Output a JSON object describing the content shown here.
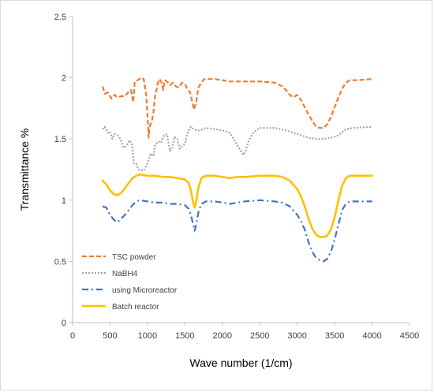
{
  "chart_data": {
    "type": "line",
    "title": "",
    "xlabel": "Wave number (1/cm)",
    "ylabel": "Transmittance %",
    "xlim": [
      0,
      4500
    ],
    "ylim": [
      0,
      2.5
    ],
    "xticks": [
      0,
      500,
      1000,
      1500,
      2000,
      2500,
      3000,
      3500,
      4000,
      4500
    ],
    "yticks": [
      0,
      0.5,
      1,
      1.5,
      2,
      2.5
    ],
    "xtick_labels": [
      "0",
      "500",
      "1000",
      "1500",
      "2000",
      "2500",
      "3000",
      "3500",
      "4000",
      "4500"
    ],
    "ytick_labels": [
      "0",
      "0.5",
      "1",
      "1.5",
      "2",
      "2.5"
    ],
    "grid": false,
    "legend": "bottom-left",
    "series": [
      {
        "name": "TSC powder",
        "color": "#ED7D31",
        "style": "dashed",
        "points": [
          [
            400,
            1.93
          ],
          [
            430,
            1.87
          ],
          [
            470,
            1.88
          ],
          [
            520,
            1.83
          ],
          [
            560,
            1.86
          ],
          [
            600,
            1.84
          ],
          [
            650,
            1.85
          ],
          [
            700,
            1.85
          ],
          [
            740,
            1.88
          ],
          [
            780,
            1.9
          ],
          [
            810,
            1.8
          ],
          [
            830,
            1.97
          ],
          [
            870,
            1.98
          ],
          [
            910,
            2.0
          ],
          [
            950,
            1.99
          ],
          [
            980,
            1.88
          ],
          [
            1000,
            1.7
          ],
          [
            1015,
            1.51
          ],
          [
            1030,
            1.6
          ],
          [
            1060,
            1.65
          ],
          [
            1080,
            1.72
          ],
          [
            1100,
            1.85
          ],
          [
            1120,
            1.9
          ],
          [
            1140,
            1.96
          ],
          [
            1160,
            1.99
          ],
          [
            1190,
            1.96
          ],
          [
            1210,
            1.9
          ],
          [
            1230,
            1.98
          ],
          [
            1260,
            1.97
          ],
          [
            1300,
            1.94
          ],
          [
            1340,
            1.96
          ],
          [
            1380,
            1.93
          ],
          [
            1420,
            1.92
          ],
          [
            1460,
            1.96
          ],
          [
            1500,
            1.95
          ],
          [
            1540,
            1.9
          ],
          [
            1570,
            1.88
          ],
          [
            1600,
            1.8
          ],
          [
            1620,
            1.74
          ],
          [
            1650,
            1.8
          ],
          [
            1680,
            1.92
          ],
          [
            1720,
            1.96
          ],
          [
            1760,
            1.99
          ],
          [
            1900,
            1.99
          ],
          [
            2000,
            1.98
          ],
          [
            2100,
            1.97
          ],
          [
            2500,
            1.97
          ],
          [
            2700,
            1.96
          ],
          [
            2800,
            1.93
          ],
          [
            2850,
            1.9
          ],
          [
            2900,
            1.86
          ],
          [
            2950,
            1.84
          ],
          [
            3000,
            1.86
          ],
          [
            3050,
            1.82
          ],
          [
            3100,
            1.76
          ],
          [
            3150,
            1.7
          ],
          [
            3200,
            1.65
          ],
          [
            3250,
            1.6
          ],
          [
            3300,
            1.59
          ],
          [
            3350,
            1.59
          ],
          [
            3400,
            1.62
          ],
          [
            3450,
            1.68
          ],
          [
            3500,
            1.76
          ],
          [
            3550,
            1.84
          ],
          [
            3600,
            1.91
          ],
          [
            3650,
            1.96
          ],
          [
            3700,
            1.98
          ],
          [
            3800,
            1.98
          ],
          [
            4000,
            1.99
          ]
        ]
      },
      {
        "name": "NaBH4",
        "color": "#A5A5A5",
        "style": "dotted",
        "points": [
          [
            400,
            1.58
          ],
          [
            430,
            1.6
          ],
          [
            470,
            1.55
          ],
          [
            500,
            1.56
          ],
          [
            530,
            1.5
          ],
          [
            560,
            1.54
          ],
          [
            600,
            1.53
          ],
          [
            640,
            1.5
          ],
          [
            680,
            1.43
          ],
          [
            720,
            1.44
          ],
          [
            760,
            1.49
          ],
          [
            790,
            1.46
          ],
          [
            820,
            1.3
          ],
          [
            850,
            1.3
          ],
          [
            880,
            1.25
          ],
          [
            910,
            1.25
          ],
          [
            940,
            1.24
          ],
          [
            960,
            1.25
          ],
          [
            1000,
            1.3
          ],
          [
            1040,
            1.38
          ],
          [
            1080,
            1.36
          ],
          [
            1100,
            1.45
          ],
          [
            1140,
            1.48
          ],
          [
            1180,
            1.47
          ],
          [
            1220,
            1.53
          ],
          [
            1260,
            1.54
          ],
          [
            1300,
            1.4
          ],
          [
            1330,
            1.43
          ],
          [
            1360,
            1.52
          ],
          [
            1400,
            1.5
          ],
          [
            1430,
            1.42
          ],
          [
            1460,
            1.44
          ],
          [
            1500,
            1.46
          ],
          [
            1540,
            1.56
          ],
          [
            1580,
            1.6
          ],
          [
            1620,
            1.58
          ],
          [
            1660,
            1.57
          ],
          [
            1700,
            1.57
          ],
          [
            1740,
            1.58
          ],
          [
            1780,
            1.59
          ],
          [
            1900,
            1.58
          ],
          [
            2000,
            1.57
          ],
          [
            2100,
            1.55
          ],
          [
            2150,
            1.5
          ],
          [
            2200,
            1.45
          ],
          [
            2250,
            1.4
          ],
          [
            2280,
            1.37
          ],
          [
            2310,
            1.4
          ],
          [
            2350,
            1.48
          ],
          [
            2400,
            1.54
          ],
          [
            2450,
            1.57
          ],
          [
            2500,
            1.59
          ],
          [
            2700,
            1.59
          ],
          [
            2850,
            1.57
          ],
          [
            2950,
            1.55
          ],
          [
            3050,
            1.53
          ],
          [
            3150,
            1.51
          ],
          [
            3250,
            1.5
          ],
          [
            3350,
            1.5
          ],
          [
            3450,
            1.51
          ],
          [
            3550,
            1.53
          ],
          [
            3650,
            1.58
          ],
          [
            3750,
            1.59
          ],
          [
            4000,
            1.6
          ]
        ]
      },
      {
        "name": "using Microreactor",
        "color": "#4472C4",
        "style": "dashdot",
        "points": [
          [
            400,
            0.95
          ],
          [
            450,
            0.94
          ],
          [
            500,
            0.88
          ],
          [
            550,
            0.84
          ],
          [
            600,
            0.82
          ],
          [
            650,
            0.85
          ],
          [
            700,
            0.88
          ],
          [
            750,
            0.92
          ],
          [
            800,
            0.96
          ],
          [
            850,
            0.99
          ],
          [
            900,
            1.0
          ],
          [
            1000,
            0.99
          ],
          [
            1100,
            0.98
          ],
          [
            1200,
            0.98
          ],
          [
            1300,
            0.97
          ],
          [
            1400,
            0.97
          ],
          [
            1500,
            0.96
          ],
          [
            1550,
            0.93
          ],
          [
            1580,
            0.88
          ],
          [
            1610,
            0.8
          ],
          [
            1630,
            0.75
          ],
          [
            1650,
            0.8
          ],
          [
            1680,
            0.9
          ],
          [
            1720,
            0.97
          ],
          [
            1780,
            0.99
          ],
          [
            1900,
            0.99
          ],
          [
            2000,
            0.98
          ],
          [
            2100,
            0.97
          ],
          [
            2200,
            0.98
          ],
          [
            2300,
            0.99
          ],
          [
            2500,
            1.0
          ],
          [
            2700,
            0.99
          ],
          [
            2800,
            0.98
          ],
          [
            2900,
            0.95
          ],
          [
            3000,
            0.88
          ],
          [
            3050,
            0.83
          ],
          [
            3100,
            0.76
          ],
          [
            3150,
            0.66
          ],
          [
            3200,
            0.58
          ],
          [
            3250,
            0.53
          ],
          [
            3300,
            0.51
          ],
          [
            3350,
            0.5
          ],
          [
            3400,
            0.52
          ],
          [
            3450,
            0.58
          ],
          [
            3500,
            0.68
          ],
          [
            3550,
            0.8
          ],
          [
            3600,
            0.92
          ],
          [
            3650,
            0.97
          ],
          [
            3700,
            0.99
          ],
          [
            3800,
            0.99
          ],
          [
            4000,
            0.99
          ]
        ]
      },
      {
        "name": "Batch reactor",
        "color": "#FFC000",
        "style": "solid",
        "points": [
          [
            400,
            1.16
          ],
          [
            450,
            1.13
          ],
          [
            500,
            1.08
          ],
          [
            550,
            1.05
          ],
          [
            600,
            1.04
          ],
          [
            650,
            1.06
          ],
          [
            700,
            1.1
          ],
          [
            750,
            1.14
          ],
          [
            800,
            1.18
          ],
          [
            850,
            1.2
          ],
          [
            900,
            1.21
          ],
          [
            1000,
            1.2
          ],
          [
            1100,
            1.2
          ],
          [
            1200,
            1.19
          ],
          [
            1300,
            1.19
          ],
          [
            1400,
            1.18
          ],
          [
            1500,
            1.17
          ],
          [
            1550,
            1.14
          ],
          [
            1580,
            1.08
          ],
          [
            1610,
            0.98
          ],
          [
            1630,
            0.94
          ],
          [
            1650,
            0.99
          ],
          [
            1680,
            1.1
          ],
          [
            1720,
            1.18
          ],
          [
            1780,
            1.2
          ],
          [
            1900,
            1.2
          ],
          [
            2000,
            1.19
          ],
          [
            2100,
            1.18
          ],
          [
            2200,
            1.19
          ],
          [
            2300,
            1.19
          ],
          [
            2500,
            1.2
          ],
          [
            2700,
            1.2
          ],
          [
            2800,
            1.19
          ],
          [
            2900,
            1.16
          ],
          [
            3000,
            1.09
          ],
          [
            3050,
            1.03
          ],
          [
            3100,
            0.95
          ],
          [
            3150,
            0.85
          ],
          [
            3200,
            0.77
          ],
          [
            3250,
            0.72
          ],
          [
            3300,
            0.7
          ],
          [
            3350,
            0.7
          ],
          [
            3400,
            0.71
          ],
          [
            3450,
            0.76
          ],
          [
            3500,
            0.86
          ],
          [
            3550,
            1.0
          ],
          [
            3600,
            1.12
          ],
          [
            3650,
            1.18
          ],
          [
            3700,
            1.2
          ],
          [
            3800,
            1.2
          ],
          [
            4000,
            1.2
          ]
        ]
      }
    ]
  }
}
